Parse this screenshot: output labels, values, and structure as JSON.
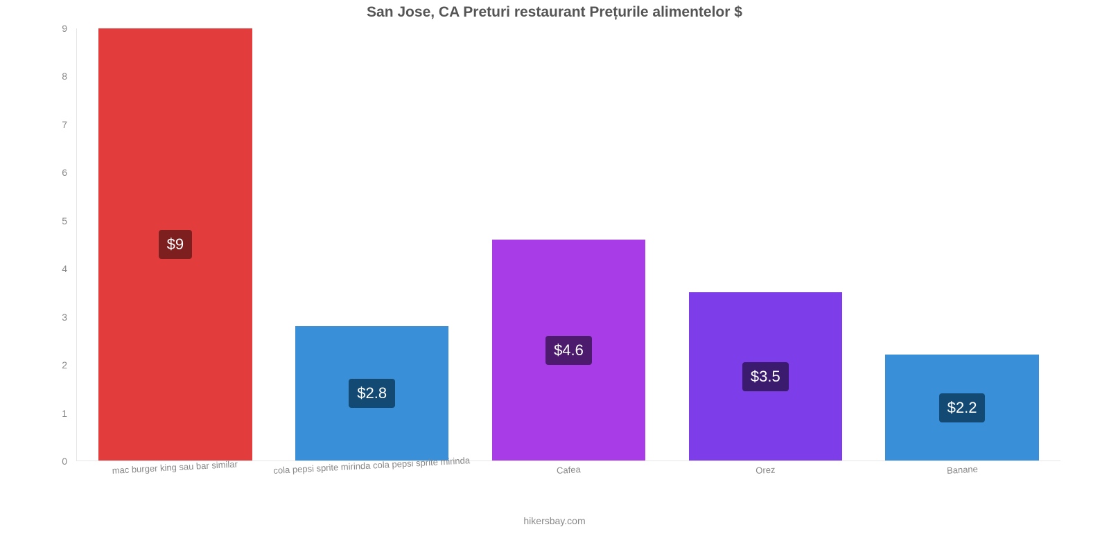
{
  "title": "San Jose, CA Preturi restaurant Prețurile alimentelor $",
  "attribution": "hikersbay.com",
  "chart": {
    "type": "bar",
    "background_color": "#ffffff",
    "axis_color": "#e6e6e6",
    "tick_label_color": "#888888",
    "ylim_max": 9,
    "yticks": [
      0,
      1,
      2,
      3,
      4,
      5,
      6,
      7,
      8,
      9
    ],
    "bar_width_pct": 78,
    "value_label_fontsize": 22,
    "value_label_text_color": "#ffffff",
    "categories": [
      "mac burger king sau bar similar",
      "cola pepsi sprite mirinda cola pepsi sprite mirinda",
      "Cafea",
      "Orez",
      "Banane"
    ],
    "series": [
      {
        "value": 9.0,
        "display": "$9",
        "bar_color": "#e23c3c",
        "badge_bg": "#7e1f1f"
      },
      {
        "value": 2.8,
        "display": "$2.8",
        "bar_color": "#3a8fd9",
        "badge_bg": "#134a73"
      },
      {
        "value": 4.6,
        "display": "$4.6",
        "bar_color": "#a83de8",
        "badge_bg": "#4c1b6e"
      },
      {
        "value": 3.5,
        "display": "$3.5",
        "bar_color": "#7d3de8",
        "badge_bg": "#3a1b6e"
      },
      {
        "value": 2.2,
        "display": "$2.2",
        "bar_color": "#3a8fd9",
        "badge_bg": "#134a73"
      }
    ]
  }
}
